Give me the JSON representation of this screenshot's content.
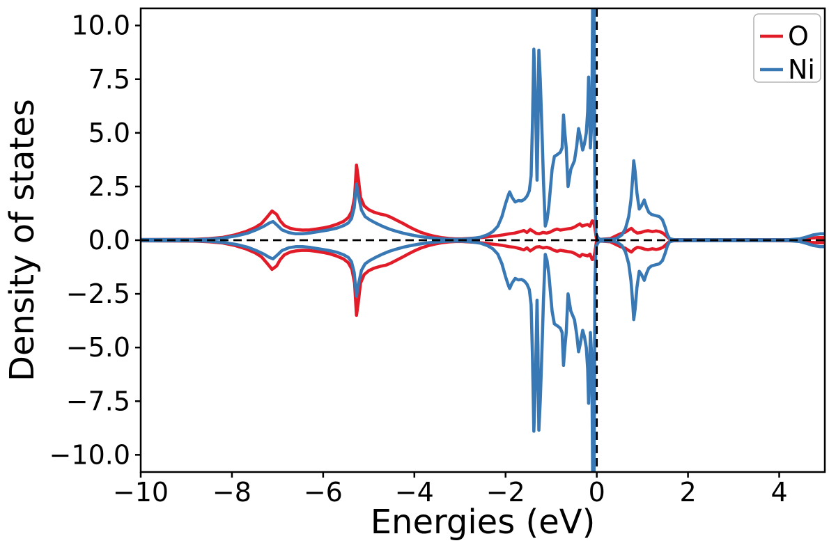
{
  "chart_data": {
    "type": "line",
    "title": "",
    "xlabel": "Energies (eV)",
    "ylabel": "Density of states",
    "xlim": [
      -10,
      5
    ],
    "ylim": [
      -10.8,
      10.8
    ],
    "grid": false,
    "xticks": {
      "values": [
        -10,
        -8,
        -6,
        -4,
        -2,
        0,
        2,
        4
      ],
      "labels": [
        "−10",
        "−8",
        "−6",
        "−4",
        "−2",
        "0",
        "2",
        "4"
      ]
    },
    "yticks": {
      "values": [
        10.0,
        7.5,
        5.0,
        2.5,
        0.0,
        -2.5,
        -5.0,
        -7.5,
        -10.0
      ],
      "labels": [
        "10.0",
        "7.5",
        "5.0",
        "2.5",
        "0.0",
        "−2.5",
        "−5.0",
        "−7.5",
        "−10.0"
      ]
    },
    "reference_lines": {
      "horizontal_y": 0,
      "vertical_x": 0,
      "style": "dashed",
      "color": "#000000"
    },
    "legend": {
      "position": "upper right",
      "entries": [
        {
          "label": "O",
          "color": "#e11b27"
        },
        {
          "label": "Ni",
          "color": "#3878b4"
        }
      ]
    },
    "series": [
      {
        "name": "O",
        "color": "#e11b27",
        "spin_down": "mirror_of_spin_up",
        "spin_up": [
          [
            -10,
            0.03
          ],
          [
            -8.8,
            0.04
          ],
          [
            -8.5,
            0.07
          ],
          [
            -8.2,
            0.13
          ],
          [
            -7.95,
            0.24
          ],
          [
            -7.7,
            0.4
          ],
          [
            -7.5,
            0.58
          ],
          [
            -7.35,
            0.78
          ],
          [
            -7.22,
            1.1
          ],
          [
            -7.12,
            1.36
          ],
          [
            -7.02,
            1.2
          ],
          [
            -6.94,
            0.9
          ],
          [
            -6.85,
            0.68
          ],
          [
            -6.72,
            0.55
          ],
          [
            -6.6,
            0.5
          ],
          [
            -6.45,
            0.47
          ],
          [
            -6.3,
            0.48
          ],
          [
            -6.15,
            0.52
          ],
          [
            -6.0,
            0.57
          ],
          [
            -5.85,
            0.64
          ],
          [
            -5.7,
            0.74
          ],
          [
            -5.55,
            0.88
          ],
          [
            -5.45,
            1.05
          ],
          [
            -5.37,
            1.35
          ],
          [
            -5.31,
            2.0
          ],
          [
            -5.27,
            3.5
          ],
          [
            -5.23,
            2.9
          ],
          [
            -5.18,
            2.0
          ],
          [
            -5.1,
            1.6
          ],
          [
            -5.0,
            1.42
          ],
          [
            -4.88,
            1.3
          ],
          [
            -4.75,
            1.22
          ],
          [
            -4.62,
            1.16
          ],
          [
            -4.5,
            1.05
          ],
          [
            -4.38,
            0.92
          ],
          [
            -4.25,
            0.78
          ],
          [
            -4.12,
            0.63
          ],
          [
            -3.98,
            0.48
          ],
          [
            -3.85,
            0.36
          ],
          [
            -3.7,
            0.26
          ],
          [
            -3.55,
            0.18
          ],
          [
            -3.4,
            0.12
          ],
          [
            -3.25,
            0.08
          ],
          [
            -3.1,
            0.06
          ],
          [
            -2.95,
            0.06
          ],
          [
            -2.8,
            0.08
          ],
          [
            -2.65,
            0.1
          ],
          [
            -2.5,
            0.13
          ],
          [
            -2.35,
            0.17
          ],
          [
            -2.2,
            0.2
          ],
          [
            -2.05,
            0.25
          ],
          [
            -1.92,
            0.3
          ],
          [
            -1.8,
            0.33
          ],
          [
            -1.68,
            0.4
          ],
          [
            -1.6,
            0.45
          ],
          [
            -1.53,
            0.36
          ],
          [
            -1.46,
            0.5
          ],
          [
            -1.4,
            0.42
          ],
          [
            -1.33,
            0.32
          ],
          [
            -1.26,
            0.3
          ],
          [
            -1.18,
            0.36
          ],
          [
            -1.1,
            0.33
          ],
          [
            -1.02,
            0.38
          ],
          [
            -0.95,
            0.46
          ],
          [
            -0.87,
            0.52
          ],
          [
            -0.8,
            0.47
          ],
          [
            -0.72,
            0.5
          ],
          [
            -0.64,
            0.53
          ],
          [
            -0.56,
            0.55
          ],
          [
            -0.48,
            0.62
          ],
          [
            -0.42,
            0.7
          ],
          [
            -0.37,
            0.76
          ],
          [
            -0.32,
            0.66
          ],
          [
            -0.26,
            0.7
          ],
          [
            -0.2,
            0.73
          ],
          [
            -0.15,
            0.65
          ],
          [
            -0.1,
            0.9
          ],
          [
            -0.07,
            0.88
          ],
          [
            -0.04,
            0.55
          ],
          [
            -0.01,
            0.1
          ],
          [
            0.08,
            0.04
          ],
          [
            0.3,
            0.07
          ],
          [
            0.42,
            0.2
          ],
          [
            0.52,
            0.3
          ],
          [
            0.62,
            0.37
          ],
          [
            0.7,
            0.48
          ],
          [
            0.76,
            0.55
          ],
          [
            0.82,
            0.42
          ],
          [
            0.89,
            0.33
          ],
          [
            0.97,
            0.36
          ],
          [
            1.05,
            0.42
          ],
          [
            1.13,
            0.44
          ],
          [
            1.22,
            0.4
          ],
          [
            1.3,
            0.43
          ],
          [
            1.38,
            0.4
          ],
          [
            1.45,
            0.33
          ],
          [
            1.52,
            0.2
          ],
          [
            1.58,
            0.08
          ],
          [
            1.65,
            0.03
          ],
          [
            2.5,
            0.02
          ],
          [
            4.3,
            0.03
          ],
          [
            4.5,
            0.06
          ],
          [
            4.7,
            0.1
          ],
          [
            4.85,
            0.12
          ],
          [
            5.0,
            0.12
          ]
        ]
      },
      {
        "name": "Ni",
        "color": "#3878b4",
        "spin_down": "mirror_of_spin_up",
        "spin_up": [
          [
            -10,
            0.03
          ],
          [
            -8.8,
            0.03
          ],
          [
            -8.5,
            0.05
          ],
          [
            -8.2,
            0.1
          ],
          [
            -7.9,
            0.2
          ],
          [
            -7.65,
            0.33
          ],
          [
            -7.45,
            0.5
          ],
          [
            -7.3,
            0.65
          ],
          [
            -7.18,
            0.8
          ],
          [
            -7.1,
            0.87
          ],
          [
            -7.0,
            0.68
          ],
          [
            -6.9,
            0.48
          ],
          [
            -6.75,
            0.35
          ],
          [
            -6.6,
            0.3
          ],
          [
            -6.45,
            0.3
          ],
          [
            -6.3,
            0.33
          ],
          [
            -6.1,
            0.4
          ],
          [
            -5.9,
            0.47
          ],
          [
            -5.7,
            0.56
          ],
          [
            -5.55,
            0.68
          ],
          [
            -5.45,
            0.8
          ],
          [
            -5.38,
            1.0
          ],
          [
            -5.32,
            1.5
          ],
          [
            -5.27,
            2.6
          ],
          [
            -5.22,
            2.0
          ],
          [
            -5.16,
            1.4
          ],
          [
            -5.08,
            1.1
          ],
          [
            -4.98,
            0.95
          ],
          [
            -4.85,
            0.8
          ],
          [
            -4.7,
            0.65
          ],
          [
            -4.55,
            0.52
          ],
          [
            -4.4,
            0.42
          ],
          [
            -4.25,
            0.33
          ],
          [
            -4.1,
            0.26
          ],
          [
            -3.9,
            0.18
          ],
          [
            -3.7,
            0.12
          ],
          [
            -3.5,
            0.08
          ],
          [
            -3.3,
            0.05
          ],
          [
            -3.1,
            0.04
          ],
          [
            -2.9,
            0.05
          ],
          [
            -2.7,
            0.09
          ],
          [
            -2.55,
            0.14
          ],
          [
            -2.4,
            0.25
          ],
          [
            -2.28,
            0.4
          ],
          [
            -2.17,
            0.65
          ],
          [
            -2.08,
            1.1
          ],
          [
            -2.0,
            1.7
          ],
          [
            -1.94,
            2.1
          ],
          [
            -1.91,
            2.25
          ],
          [
            -1.86,
            2.0
          ],
          [
            -1.79,
            1.78
          ],
          [
            -1.72,
            1.85
          ],
          [
            -1.65,
            1.83
          ],
          [
            -1.59,
            1.9
          ],
          [
            -1.53,
            2.05
          ],
          [
            -1.48,
            2.3
          ],
          [
            -1.44,
            3.0
          ],
          [
            -1.41,
            5.5
          ],
          [
            -1.38,
            8.9
          ],
          [
            -1.35,
            7.0
          ],
          [
            -1.31,
            2.8
          ],
          [
            -1.29,
            5.0
          ],
          [
            -1.27,
            8.85
          ],
          [
            -1.24,
            7.5
          ],
          [
            -1.21,
            5.6
          ],
          [
            -1.17,
            2.8
          ],
          [
            -1.13,
            0.66
          ],
          [
            -1.09,
            0.95
          ],
          [
            -1.05,
            1.6
          ],
          [
            -0.98,
            3.3
          ],
          [
            -0.93,
            3.9
          ],
          [
            -0.86,
            4.0
          ],
          [
            -0.8,
            4.1
          ],
          [
            -0.76,
            4.3
          ],
          [
            -0.73,
            5.83
          ],
          [
            -0.7,
            5.0
          ],
          [
            -0.67,
            4.3
          ],
          [
            -0.63,
            2.5
          ],
          [
            -0.57,
            3.3
          ],
          [
            -0.49,
            3.7
          ],
          [
            -0.44,
            4.4
          ],
          [
            -0.4,
            5.2
          ],
          [
            -0.36,
            4.8
          ],
          [
            -0.31,
            4.2
          ],
          [
            -0.27,
            4.5
          ],
          [
            -0.23,
            5.0
          ],
          [
            -0.2,
            6.0
          ],
          [
            -0.18,
            7.6
          ],
          [
            -0.16,
            6.2
          ],
          [
            -0.14,
            4.3
          ],
          [
            -0.11,
            5.5
          ],
          [
            -0.09,
            11.3
          ],
          [
            -0.06,
            11.3
          ],
          [
            -0.04,
            2.0
          ],
          [
            -0.02,
            0.3
          ],
          [
            0.05,
            0.04
          ],
          [
            0.35,
            0.04
          ],
          [
            0.45,
            0.1
          ],
          [
            0.55,
            0.25
          ],
          [
            0.63,
            0.55
          ],
          [
            0.7,
            1.1
          ],
          [
            0.75,
            1.9
          ],
          [
            0.79,
            3.0
          ],
          [
            0.81,
            3.7
          ],
          [
            0.84,
            3.2
          ],
          [
            0.88,
            2.2
          ],
          [
            0.93,
            1.45
          ],
          [
            0.98,
            1.6
          ],
          [
            1.04,
            1.87
          ],
          [
            1.09,
            1.55
          ],
          [
            1.14,
            1.3
          ],
          [
            1.2,
            1.2
          ],
          [
            1.28,
            1.15
          ],
          [
            1.37,
            1.1
          ],
          [
            1.44,
            0.95
          ],
          [
            1.5,
            0.6
          ],
          [
            1.55,
            0.25
          ],
          [
            1.6,
            0.07
          ],
          [
            1.7,
            0.02
          ],
          [
            2.5,
            0.02
          ],
          [
            4.2,
            0.02
          ],
          [
            4.45,
            0.06
          ],
          [
            4.6,
            0.15
          ],
          [
            4.75,
            0.25
          ],
          [
            4.9,
            0.3
          ],
          [
            5.0,
            0.3
          ]
        ]
      }
    ]
  }
}
